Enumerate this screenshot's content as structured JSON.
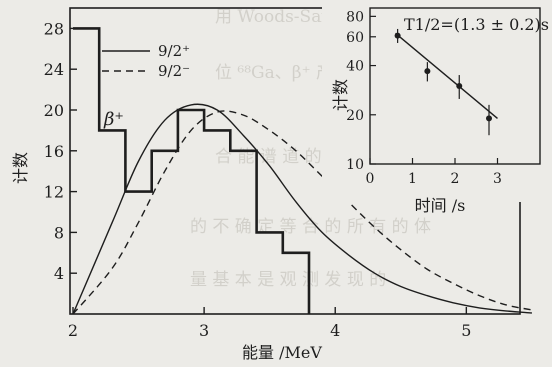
{
  "chart_data": [
    {
      "type": "line",
      "xlabel": "能量 /MeV",
      "ylabel": "计数",
      "xlim": [
        2,
        5.6
      ],
      "ylim": [
        0,
        30
      ],
      "xticks": [
        2,
        3,
        4,
        5
      ],
      "yticks": [
        4,
        8,
        12,
        16,
        20,
        24,
        28
      ],
      "annotation": "β⁺",
      "legend_position": "top-left",
      "histogram": {
        "name": "",
        "edges": [
          2.0,
          2.2,
          2.4,
          2.6,
          2.8,
          3.0,
          3.2,
          3.4,
          3.6,
          3.8
        ],
        "counts": [
          28,
          18,
          12,
          16,
          20,
          18,
          16,
          8,
          6
        ]
      },
      "series": [
        {
          "name": "9/2⁺",
          "style": "solid",
          "x": [
            2.0,
            2.3,
            2.5,
            2.7,
            2.9,
            3.1,
            3.3,
            3.5,
            3.7,
            3.9,
            4.1,
            4.3,
            4.5,
            4.7,
            4.9,
            5.1,
            5.3,
            5.5
          ],
          "y": [
            0,
            9,
            15,
            19,
            20.5,
            20,
            17.5,
            14.5,
            11,
            8,
            5.8,
            4,
            2.7,
            1.8,
            1.1,
            0.6,
            0.3,
            0.1
          ]
        },
        {
          "name": "9/2⁻",
          "style": "dashed",
          "x": [
            2.0,
            2.3,
            2.5,
            2.7,
            2.9,
            3.1,
            3.3,
            3.5,
            3.7,
            3.9,
            4.1,
            4.3,
            4.5,
            4.7,
            4.9,
            5.1,
            5.3,
            5.5
          ],
          "y": [
            0,
            4.5,
            9,
            14,
            18,
            19.8,
            19.5,
            18,
            16,
            13.5,
            11,
            8.5,
            6.3,
            4.4,
            3,
            1.8,
            0.9,
            0.4
          ]
        }
      ]
    },
    {
      "type": "scatter",
      "title": "T1/2=(1.3 ± 0.2)s",
      "xlabel": "时间 /s",
      "ylabel": "计数",
      "xlim": [
        0,
        4
      ],
      "ylim": [
        10,
        90
      ],
      "y_scale": "log",
      "xticks": [
        0,
        1,
        2,
        3
      ],
      "yticks": [
        10,
        20,
        40,
        60,
        80
      ],
      "points": [
        {
          "x": 0.65,
          "y": 61,
          "err": 6
        },
        {
          "x": 1.35,
          "y": 37,
          "err": 5
        },
        {
          "x": 2.1,
          "y": 30,
          "err": 5
        },
        {
          "x": 2.8,
          "y": 19,
          "err": 4
        }
      ],
      "fit_line": {
        "x": [
          0.6,
          3.0
        ],
        "y": [
          63,
          19
        ]
      }
    }
  ]
}
